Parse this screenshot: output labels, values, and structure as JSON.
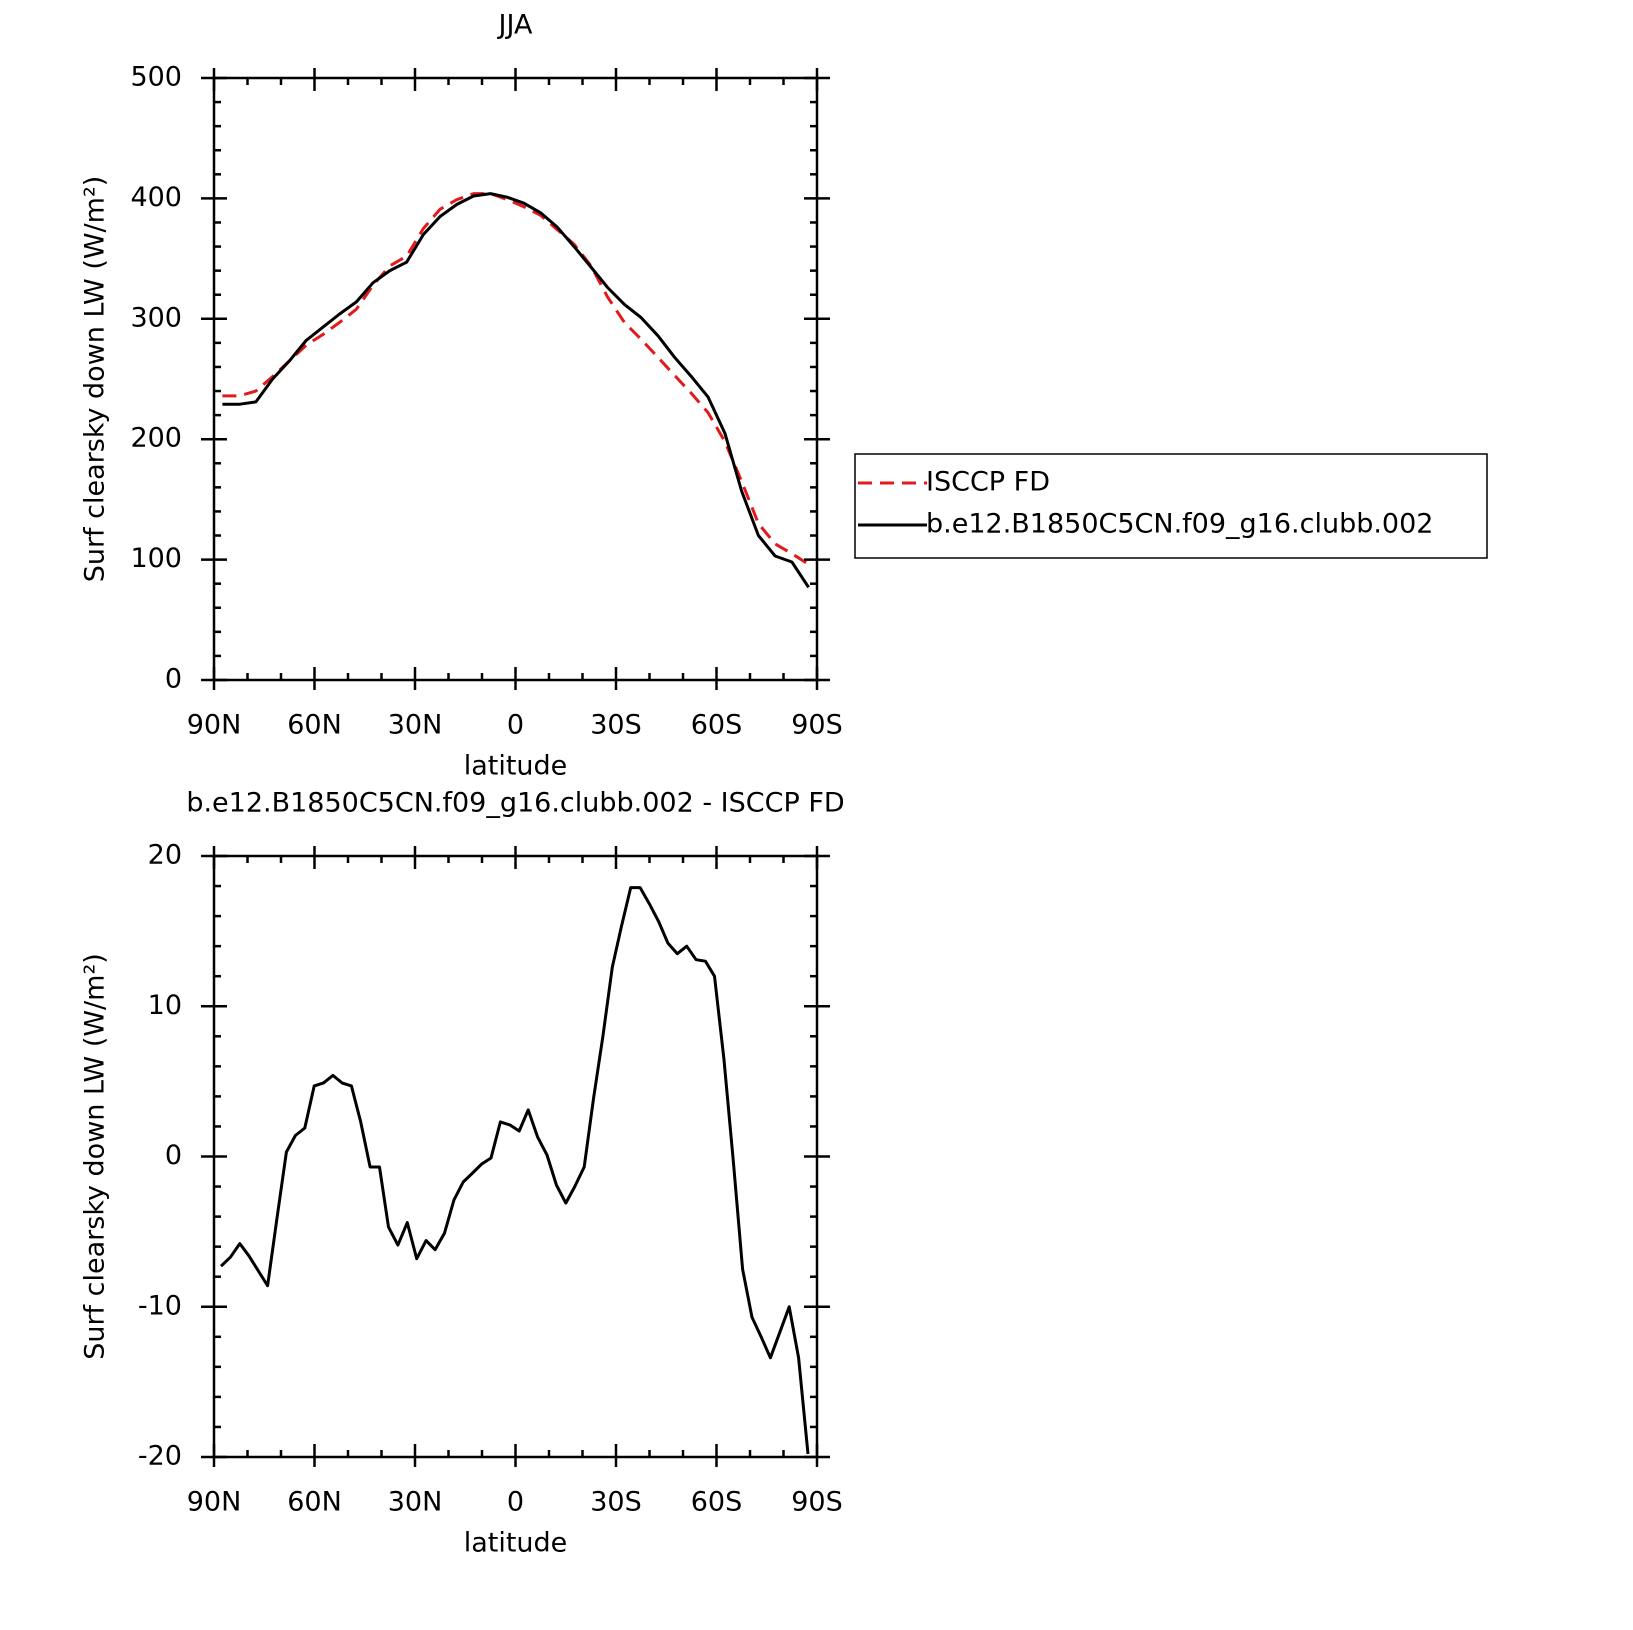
{
  "chart_data": [
    {
      "type": "line",
      "title": "JJA",
      "x_axis_label": "latitude",
      "y_axis_label": "Surf clearsky down LW (W/m²)",
      "x": [
        87.5,
        82.5,
        77.5,
        72.5,
        67.5,
        62.5,
        57.5,
        52.5,
        47.5,
        42.5,
        37.5,
        32.5,
        27.5,
        22.5,
        17.5,
        12.5,
        7.5,
        2.5,
        -2.5,
        -7.5,
        -12.5,
        -17.5,
        -22.5,
        -27.5,
        -32.5,
        -37.5,
        -42.5,
        -47.5,
        -52.5,
        -57.5,
        -62.5,
        -67.5,
        -72.5,
        -77.5,
        -82.5,
        -87.5
      ],
      "series": [
        {
          "name": "ISCCP FD",
          "color": "#e31a1c",
          "dashed": true,
          "values": [
            236,
            236,
            240,
            252,
            265,
            278,
            287,
            297,
            308,
            328,
            344,
            352,
            375,
            391,
            399,
            404,
            404,
            399,
            393,
            386,
            374,
            362,
            344,
            318,
            297,
            283,
            268,
            253,
            238,
            222,
            198,
            165,
            130,
            113,
            105,
            96
          ]
        },
        {
          "name": "b.e12.B1850C5CN.f09_g16.clubb.002",
          "color": "#000000",
          "dashed": false,
          "values": [
            229,
            229,
            231,
            250,
            265,
            282,
            293,
            304,
            314,
            330,
            340,
            347,
            370,
            385,
            395,
            402,
            404,
            401,
            396,
            388,
            376,
            360,
            343,
            326,
            312,
            301,
            286,
            268,
            252,
            235,
            205,
            157,
            120,
            103,
            98,
            77
          ]
        }
      ],
      "xlim": [
        90,
        -90
      ],
      "xticks": [
        {
          "value": 90,
          "label": "90N"
        },
        {
          "value": 60,
          "label": "60N"
        },
        {
          "value": 30,
          "label": "30N"
        },
        0,
        {
          "value": -30,
          "label": "30S"
        },
        {
          "value": -60,
          "label": "60S"
        },
        {
          "value": -90,
          "label": "90S"
        }
      ],
      "xminorticks": [
        80,
        70,
        50,
        40,
        20,
        10,
        -10,
        -20,
        -40,
        -50,
        -70,
        -80
      ],
      "ylim": [
        0,
        500
      ],
      "yticks": [
        0,
        100,
        200,
        300,
        400,
        500
      ],
      "yminorticks": [
        20,
        40,
        60,
        80,
        120,
        140,
        160,
        180,
        220,
        240,
        260,
        280,
        320,
        340,
        360,
        380,
        420,
        440,
        460,
        480
      ],
      "legend": "right"
    },
    {
      "type": "line",
      "title": "b.e12.B1850C5CN.f09_g16.clubb.002 - ISCCP FD",
      "x_axis_label": "latitude",
      "y_axis_label": "Surf clearsky down LW (W/m²)",
      "x": [
        87.9,
        85.1,
        82.3,
        79.6,
        76.8,
        74.0,
        71.2,
        68.4,
        65.7,
        62.9,
        60.1,
        57.3,
        54.5,
        51.8,
        49.0,
        46.2,
        43.4,
        40.6,
        37.9,
        35.1,
        32.3,
        29.5,
        26.7,
        24.0,
        21.2,
        18.4,
        15.6,
        12.8,
        10.1,
        7.3,
        4.5,
        1.7,
        -1.1,
        -3.8,
        -6.6,
        -9.4,
        -12.2,
        -15.0,
        -17.7,
        -20.5,
        -23.3,
        -26.1,
        -28.9,
        -31.6,
        -34.4,
        -37.2,
        -40.0,
        -42.8,
        -45.5,
        -48.3,
        -51.1,
        -53.9,
        -56.7,
        -59.4,
        -62.2,
        -65.0,
        -67.8,
        -70.6,
        -73.3,
        -76.1,
        -78.9,
        -81.7,
        -84.5,
        -87.3
      ],
      "series": [
        {
          "color": "#000000",
          "dashed": false,
          "values": [
            -7.3,
            -6.7,
            -5.8,
            -6.6,
            -7.6,
            -8.6,
            -4.1,
            0.3,
            1.4,
            1.9,
            4.7,
            4.9,
            5.4,
            4.9,
            4.7,
            2.3,
            -0.7,
            -0.7,
            -4.7,
            -5.9,
            -4.4,
            -6.8,
            -5.6,
            -6.2,
            -5.1,
            -2.9,
            -1.7,
            -1.1,
            -0.5,
            -0.1,
            2.3,
            2.1,
            1.7,
            3.1,
            1.3,
            0.1,
            -1.9,
            -3.1,
            -2.0,
            -0.7,
            3.9,
            8.0,
            12.6,
            15.3,
            17.9,
            17.9,
            16.8,
            15.6,
            14.2,
            13.5,
            14.0,
            13.1,
            13.0,
            12.0,
            6.5,
            -0.3,
            -7.5,
            -10.7,
            -12.0,
            -13.4,
            -11.7,
            -10.0,
            -13.4,
            -19.8
          ]
        }
      ],
      "xlim": [
        90,
        -90
      ],
      "xticks": [
        {
          "value": 90,
          "label": "90N"
        },
        {
          "value": 60,
          "label": "60N"
        },
        {
          "value": 30,
          "label": "30N"
        },
        0,
        {
          "value": -30,
          "label": "30S"
        },
        {
          "value": -60,
          "label": "60S"
        },
        {
          "value": -90,
          "label": "90S"
        }
      ],
      "xminorticks": [
        80,
        70,
        50,
        40,
        20,
        10,
        -10,
        -20,
        -40,
        -50,
        -70,
        -80
      ],
      "ylim": [
        -20,
        20
      ],
      "yticks": [
        -20,
        -10,
        0,
        10,
        20
      ],
      "yminorticks": [
        -18,
        -16,
        -14,
        -12,
        -8,
        -6,
        -4,
        -2,
        2,
        4,
        6,
        8,
        12,
        14,
        16,
        18
      ]
    }
  ]
}
